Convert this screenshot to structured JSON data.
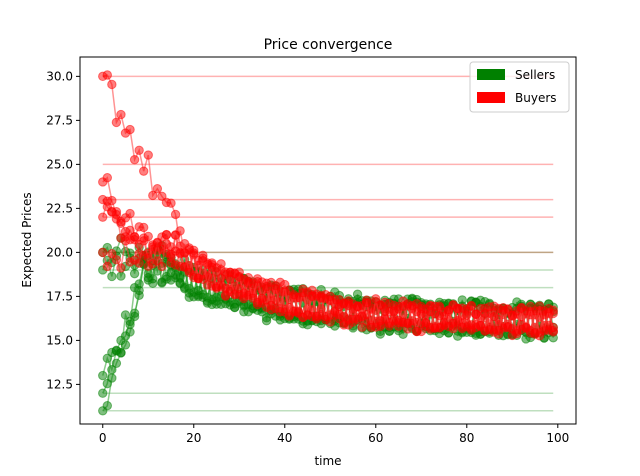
{
  "chart_data": {
    "type": "line",
    "title": "Price convergence",
    "xlabel": "time",
    "ylabel": "Expected Prices",
    "xlim": [
      -5,
      104
    ],
    "ylim": [
      10.25,
      31.1
    ],
    "x_ticks": [
      0,
      20,
      40,
      60,
      80,
      100
    ],
    "y_ticks": [
      12.5,
      15.0,
      17.5,
      20.0,
      22.5,
      25.0,
      27.5,
      30.0
    ],
    "grid": false,
    "legend": {
      "placement": "top-right",
      "entries": [
        {
          "label": "Sellers",
          "color": "#008000"
        },
        {
          "label": "Buyers",
          "color": "#ff0000"
        }
      ]
    },
    "reference_lines": {
      "Buyers": [
        30,
        25,
        23,
        22,
        20
      ],
      "Sellers": [
        20,
        19,
        18,
        12,
        11
      ]
    },
    "series_start_values": {
      "Buyers": [
        30,
        24,
        23,
        22,
        20
      ],
      "Sellers": [
        20,
        19,
        13,
        12,
        11
      ]
    },
    "x_range": [
      0,
      99
    ],
    "convergence": {
      "Sellers": {
        "mean_at_end": 16.1,
        "spread_at_end": 0.8
      },
      "Buyers": {
        "mean_at_end": 16.0,
        "spread_at_end": 0.6
      }
    }
  },
  "colors": {
    "seller": "#008000",
    "buyer": "#ff0000",
    "seller_line": "#2ca02c",
    "buyer_line": "#ff3b3b"
  }
}
